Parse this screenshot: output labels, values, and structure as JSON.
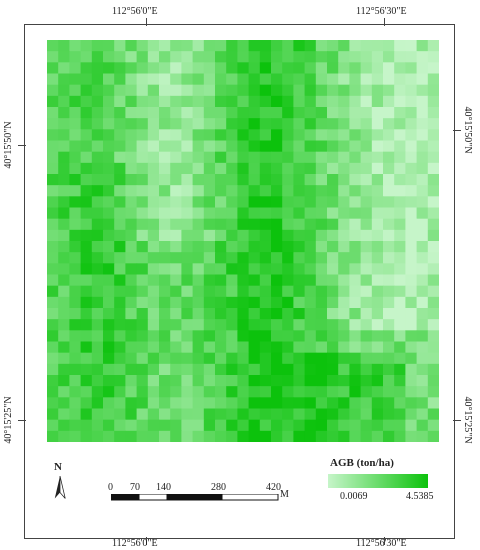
{
  "map": {
    "top_labels": [
      "112°56'0\"E",
      "112°56'30\"E"
    ],
    "bottom_labels": [
      "112°56'0\"E",
      "112°56'30\"E"
    ],
    "left_labels": [
      "40°15'50\"N",
      "40°15'25\"N"
    ],
    "right_labels": [
      "40°15'50\"N",
      "40°15'25\"N"
    ],
    "colors": {
      "low": "#c6f5c9",
      "high": "#0cc20c"
    }
  },
  "legend": {
    "title": "AGB (ton/ha)",
    "min": "0.0069",
    "max": "4.5385"
  },
  "scale_bar": {
    "labels": [
      "0",
      "70",
      "140",
      "280",
      "420"
    ],
    "unit": "M"
  },
  "north_arrow": {
    "label": "N"
  }
}
